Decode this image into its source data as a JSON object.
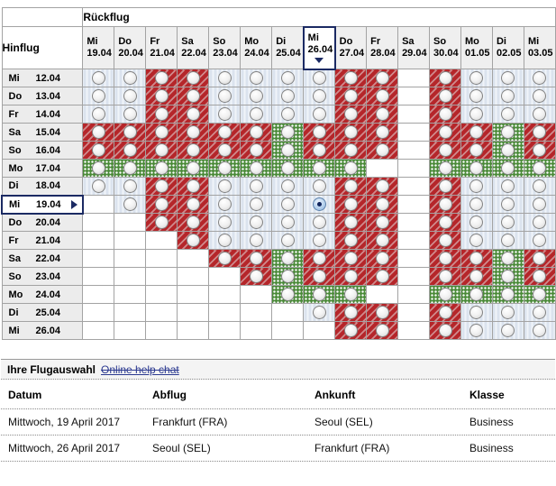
{
  "matrix": {
    "return_header": "Rückflug",
    "outbound_header": "Hinflug",
    "columns": [
      {
        "day": "Mi",
        "date": "19.04"
      },
      {
        "day": "Do",
        "date": "20.04"
      },
      {
        "day": "Fr",
        "date": "21.04"
      },
      {
        "day": "Sa",
        "date": "22.04"
      },
      {
        "day": "So",
        "date": "23.04"
      },
      {
        "day": "Mo",
        "date": "24.04"
      },
      {
        "day": "Di",
        "date": "25.04"
      },
      {
        "day": "Mi",
        "date": "26.04"
      },
      {
        "day": "Do",
        "date": "27.04"
      },
      {
        "day": "Fr",
        "date": "28.04"
      },
      {
        "day": "Sa",
        "date": "29.04"
      },
      {
        "day": "So",
        "date": "30.04"
      },
      {
        "day": "Mo",
        "date": "01.05"
      },
      {
        "day": "Di",
        "date": "02.05"
      },
      {
        "day": "Mi",
        "date": "03.05"
      }
    ],
    "rows": [
      {
        "day": "Mi",
        "date": "12.04",
        "cells": "BBRRBBBBRRERBBB"
      },
      {
        "day": "Do",
        "date": "13.04",
        "cells": "BBRRBBBBRRERBBB"
      },
      {
        "day": "Fr",
        "date": "14.04",
        "cells": "BBRRBBBBRRERBBB"
      },
      {
        "day": "Sa",
        "date": "15.04",
        "cells": "RRRRRRGRRRERRGR"
      },
      {
        "day": "So",
        "date": "16.04",
        "cells": "RRRRRRGRRRERRGR"
      },
      {
        "day": "Mo",
        "date": "17.04",
        "cells": "GGGGGGGGGEEGGGG"
      },
      {
        "day": "Di",
        "date": "18.04",
        "cells": "BBRRBBBBRRERBBB"
      },
      {
        "day": "Mi",
        "date": "19.04",
        "cells": "EBRRBBBBRRERBBB"
      },
      {
        "day": "Do",
        "date": "20.04",
        "cells": "EERRBBBBRRERBBB"
      },
      {
        "day": "Fr",
        "date": "21.04",
        "cells": "EEERBBBBRRERBBB"
      },
      {
        "day": "Sa",
        "date": "22.04",
        "cells": "EEEERRGRRRERRGR"
      },
      {
        "day": "So",
        "date": "23.04",
        "cells": "EEEEERGRRRERRGR"
      },
      {
        "day": "Mo",
        "date": "24.04",
        "cells": "EEEEEEGGGEEGGGG"
      },
      {
        "day": "Di",
        "date": "25.04",
        "cells": "EEEEEEEBRRERBBB"
      },
      {
        "day": "Mi",
        "date": "26.04",
        "cells": "EEEEEEEERRERBBB"
      }
    ],
    "selected": {
      "row_index": 7,
      "col_index": 7
    },
    "cell_legend": {
      "B": "blue-striped",
      "R": "red-striped",
      "G": "green-dotted",
      "E": "empty"
    }
  },
  "colors": {
    "red_base": "#b5262a",
    "red_stripe": "#d08a8c",
    "green_base": "#4a8a38",
    "blue_base": "#dbe3ee",
    "blue_stripe": "#f0f4f9",
    "selection_navy": "#1b2a63",
    "link_blue": "#2b3990",
    "grid_border": "#a3a3a3"
  },
  "selection": {
    "title": "Ihre Flugauswahl",
    "help_link": "Online help chat",
    "headers": [
      "Datum",
      "Abflug",
      "Ankunft",
      "Klasse"
    ],
    "rows": [
      {
        "datum": "Mittwoch, 19 April 2017",
        "abflug": "Frankfurt (FRA)",
        "ankunft": "Seoul (SEL)",
        "klasse": "Business"
      },
      {
        "datum": "Mittwoch, 26 April 2017",
        "abflug": "Seoul (SEL)",
        "ankunft": "Frankfurt (FRA)",
        "klasse": "Business"
      }
    ]
  }
}
